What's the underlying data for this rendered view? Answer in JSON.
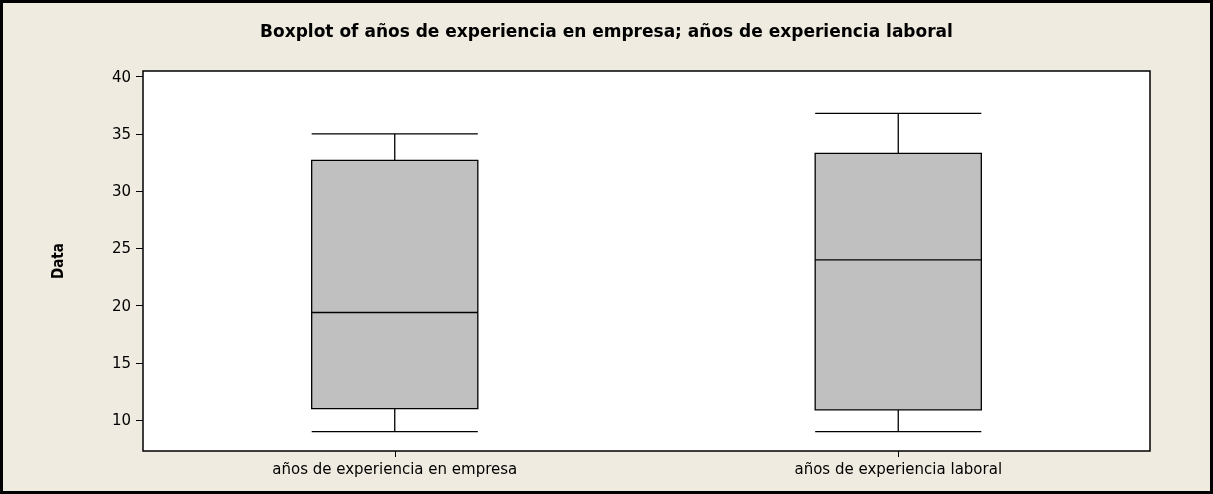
{
  "chart_data": {
    "type": "box",
    "title": "Boxplot of años de experiencia en empresa; años de experiencia laboral",
    "ylabel": "Data",
    "categories": [
      "años de experiencia en empresa",
      "años de experiencia laboral"
    ],
    "boxes": [
      {
        "low": 9,
        "q1": 11,
        "median": 19.4,
        "q3": 32.7,
        "high": 35
      },
      {
        "low": 9,
        "q1": 10.9,
        "median": 24,
        "q3": 33.3,
        "high": 36.8
      }
    ],
    "color": "#c0c0c0",
    "ylim": [
      7.3,
      40.5
    ],
    "yticks": [
      10,
      15,
      20,
      25,
      30,
      35,
      40
    ],
    "grid": false
  }
}
